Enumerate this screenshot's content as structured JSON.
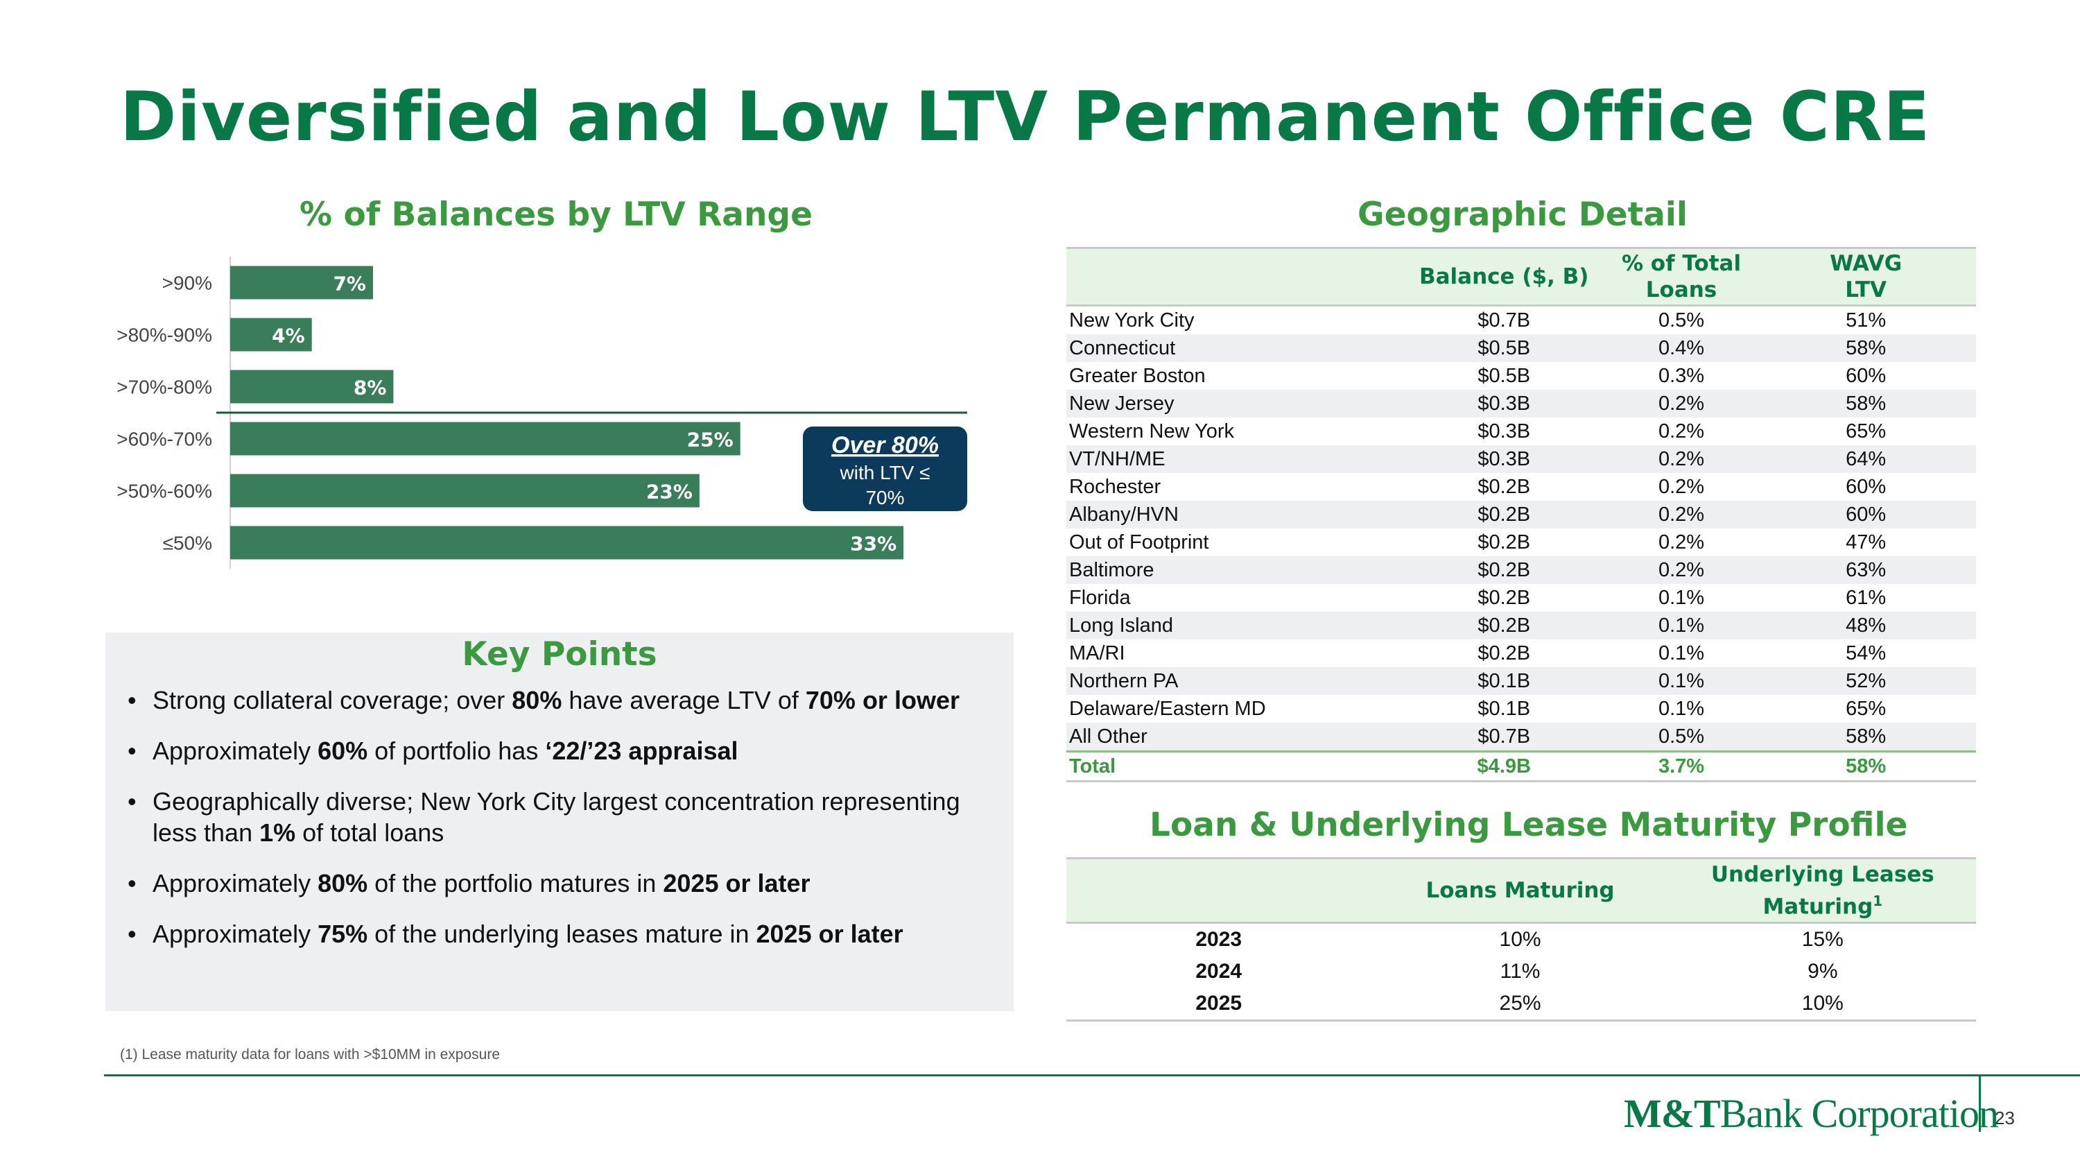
{
  "title": "Diversified and Low LTV Permanent Office CRE",
  "chart_title": "% of Balances by LTV Range",
  "chart_data": {
    "type": "bar",
    "orientation": "horizontal",
    "title": "% of Balances by LTV Range",
    "categories": [
      ">90%",
      ">80%-90%",
      ">70%-80%",
      ">60%-70%",
      ">50%-60%",
      "≤50%"
    ],
    "values": [
      7,
      4,
      8,
      25,
      23,
      33
    ],
    "labels": [
      "7%",
      "4%",
      "8%",
      "25%",
      "23%",
      "33%"
    ],
    "xlabel": "",
    "ylabel": "",
    "xlim": [
      0,
      35
    ],
    "bar_color": "#3a7d5a",
    "annotation": {
      "title": "Over 80%",
      "lines": [
        "with LTV ≤",
        "70%"
      ],
      "color": "#0c3a5b"
    }
  },
  "key_points": {
    "title": "Key Points",
    "items": [
      {
        "t1": "Strong collateral coverage; over ",
        "b1": "80%",
        "t2": " have average LTV of ",
        "b2": "70% or lower",
        "t3": ""
      },
      {
        "t1": "Approximately ",
        "b1": "60%",
        "t2": " of portfolio has ",
        "b2": "‘22/’23 appraisal",
        "t3": ""
      },
      {
        "t1": "Geographically diverse; New York City largest concentration representing less than ",
        "b1": "1%",
        "t2": " of total loans",
        "b2": "",
        "t3": ""
      },
      {
        "t1": "Approximately ",
        "b1": "80%",
        "t2": " of the portfolio matures in ",
        "b2": "2025 or later",
        "t3": ""
      },
      {
        "t1": "Approximately ",
        "b1": "75%",
        "t2": " of the underlying leases mature in ",
        "b2": "2025 or later",
        "t3": ""
      }
    ]
  },
  "geo": {
    "title": "Geographic Detail",
    "headers": {
      "balance": "Balance ($, B)",
      "pct_l1": "% of Total",
      "pct_l2": "Loans",
      "wavg_l1": "WAVG",
      "wavg_l2": "LTV"
    },
    "rows": [
      [
        "New York City",
        "$0.7B",
        "0.5%",
        "51%"
      ],
      [
        "Connecticut",
        "$0.5B",
        "0.4%",
        "58%"
      ],
      [
        "Greater Boston",
        "$0.5B",
        "0.3%",
        "60%"
      ],
      [
        "New Jersey",
        "$0.3B",
        "0.2%",
        "58%"
      ],
      [
        "Western New York",
        "$0.3B",
        "0.2%",
        "65%"
      ],
      [
        "VT/NH/ME",
        "$0.3B",
        "0.2%",
        "64%"
      ],
      [
        "Rochester",
        "$0.2B",
        "0.2%",
        "60%"
      ],
      [
        "Albany/HVN",
        "$0.2B",
        "0.2%",
        "60%"
      ],
      [
        "Out of Footprint",
        "$0.2B",
        "0.2%",
        "47%"
      ],
      [
        "Baltimore",
        "$0.2B",
        "0.2%",
        "63%"
      ],
      [
        "Florida",
        "$0.2B",
        "0.1%",
        "61%"
      ],
      [
        "Long Island",
        "$0.2B",
        "0.1%",
        "48%"
      ],
      [
        "MA/RI",
        "$0.2B",
        "0.1%",
        "54%"
      ],
      [
        "Northern PA",
        "$0.1B",
        "0.1%",
        "52%"
      ],
      [
        "Delaware/Eastern MD",
        "$0.1B",
        "0.1%",
        "65%"
      ],
      [
        "All Other",
        "$0.7B",
        "0.5%",
        "58%"
      ]
    ],
    "total": [
      "Total",
      "$4.9B",
      "3.7%",
      "58%"
    ]
  },
  "maturity": {
    "title": "Loan & Underlying Lease Maturity Profile",
    "headers": {
      "loans": "Loans Maturing",
      "leases_l1": "Underlying Leases",
      "leases_l2": "Maturing",
      "leases_sup": "1"
    },
    "rows": [
      [
        "2023",
        "10%",
        "15%"
      ],
      [
        "2024",
        "11%",
        "9%"
      ],
      [
        "2025",
        "25%",
        "10%"
      ]
    ]
  },
  "footnote": "(1) Lease maturity data for loans with >$10MM in exposure",
  "logo": {
    "bold": "M&T",
    "rest": "Bank Corporation"
  },
  "page_number": "23"
}
